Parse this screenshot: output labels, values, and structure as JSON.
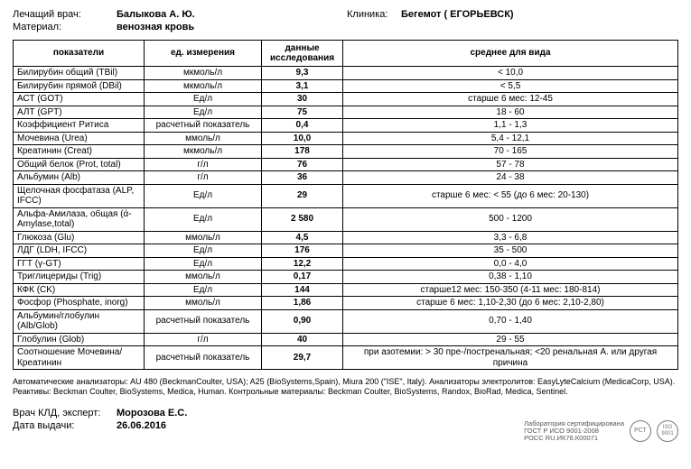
{
  "header": {
    "doctor_label": "Лечащий врач:",
    "doctor": "Балыкова А. Ю.",
    "clinic_label": "Клиника:",
    "clinic": "Бегемот ( ЕГОРЬЕВСК)",
    "material_label": "Материал:",
    "material": "венозная кровь"
  },
  "columns": {
    "param": "показатели",
    "unit": "ед. измерения",
    "result": "данные исследования",
    "ref": "среднее для вида"
  },
  "rows": [
    {
      "n": "Билирубин общий (TBil)",
      "u": "мкмоль/л",
      "r": "9,3",
      "ref": "< 10,0"
    },
    {
      "n": "Билирубин прямой (DBil)",
      "u": "мкмоль/л",
      "r": "3,1",
      "ref": "< 5,5"
    },
    {
      "n": "АСТ (GOT)",
      "u": "Ед/л",
      "r": "30",
      "ref": "старше 6 мес: 12-45"
    },
    {
      "n": "АЛТ (GPT)",
      "u": "Ед/л",
      "r": "75",
      "ref": "18 - 60"
    },
    {
      "n": "Коэффициент Ритиса",
      "u": "расчетный показатель",
      "r": "0,4",
      "ref": "1,1 - 1,3"
    },
    {
      "n": "Мочевина (Urea)",
      "u": "ммоль/л",
      "r": "10,0",
      "ref": "5,4 - 12,1"
    },
    {
      "n": "Креатинин (Creat)",
      "u": "мкмоль/л",
      "r": "178",
      "ref": "70 - 165"
    },
    {
      "n": "Общий белок (Prot, total)",
      "u": "г/л",
      "r": "76",
      "ref": "57 - 78"
    },
    {
      "n": "Альбумин (Alb)",
      "u": "г/л",
      "r": "36",
      "ref": "24 - 38"
    },
    {
      "n": "Щелочная фосфатаза (ALP, IFCC)",
      "u": "Ед/л",
      "r": "29",
      "ref": "старше 6 мес: < 55 (до 6 мес: 20-130)"
    },
    {
      "n": "Альфа-Амилаза, общая (ά-Amylase,total)",
      "u": "Ед/л",
      "r": "2 580",
      "ref": "500 - 1200"
    },
    {
      "n": "Глюкоза (Glu)",
      "u": "ммоль/л",
      "r": "4,5",
      "ref": "3,3 - 6,8"
    },
    {
      "n": "ЛДГ (LDH, IFCC)",
      "u": "Ед/л",
      "r": "176",
      "ref": "35 - 500"
    },
    {
      "n": "ГГТ (γ-GT)",
      "u": "Ед/л",
      "r": "12,2",
      "ref": "0,0 - 4,0"
    },
    {
      "n": "Триглицериды (Trig)",
      "u": "ммоль/л",
      "r": "0,17",
      "ref": "0,38 - 1,10"
    },
    {
      "n": "КФК (CK)",
      "u": "Ед/л",
      "r": "144",
      "ref": "старше12 мес: 150-350 (4-11 мес: 180-814)"
    },
    {
      "n": "Фосфор (Phosphate, inorg)",
      "u": "ммоль/л",
      "r": "1,86",
      "ref": "старше 6 мес: 1,10-2,30 (до 6 мес: 2,10-2,80)"
    },
    {
      "n": "Альбумин/глобулин (Alb/Glob)",
      "u": "расчетный показатель",
      "r": "0,90",
      "ref": "0,70 - 1,40"
    },
    {
      "n": "Глобулин (Glob)",
      "u": "г/л",
      "r": "40",
      "ref": "29 - 55"
    },
    {
      "n": "Соотношение Мочевина/Креатинин",
      "u": "расчетный показатель",
      "r": "29,7",
      "ref": "при азотемии: > 30 пре-/постренальная; <20 ренальная А. или другая причина"
    }
  ],
  "footer": {
    "analyzers": "Автоматические анализаторы: AU 480 (BeckmanCoulter, USA); A25 (BioSystems,Spain), Miura 200 (\"ISE\", Italy). Анализаторы электролитов: EasyLyteCalcium (MedicaCorp, USA). Реактивы: Beckman Coulter, BioSystems, Medica, Human. Контрольные материалы: Beckman Coulter, BioSystems, Randox, BioRad, Medica, Sentinel."
  },
  "signature": {
    "expert_label": "Врач КЛД, эксперт:",
    "expert": "Морозова Е.С.",
    "date_label": "Дата выдачи:",
    "date": "26.06.2016"
  },
  "cert": {
    "line1": "Лаборатория сертифицирована",
    "line2": "ГОСТ Р ИСО 9001-2008",
    "line3": "РОСС RU.ИК76.К00071"
  }
}
